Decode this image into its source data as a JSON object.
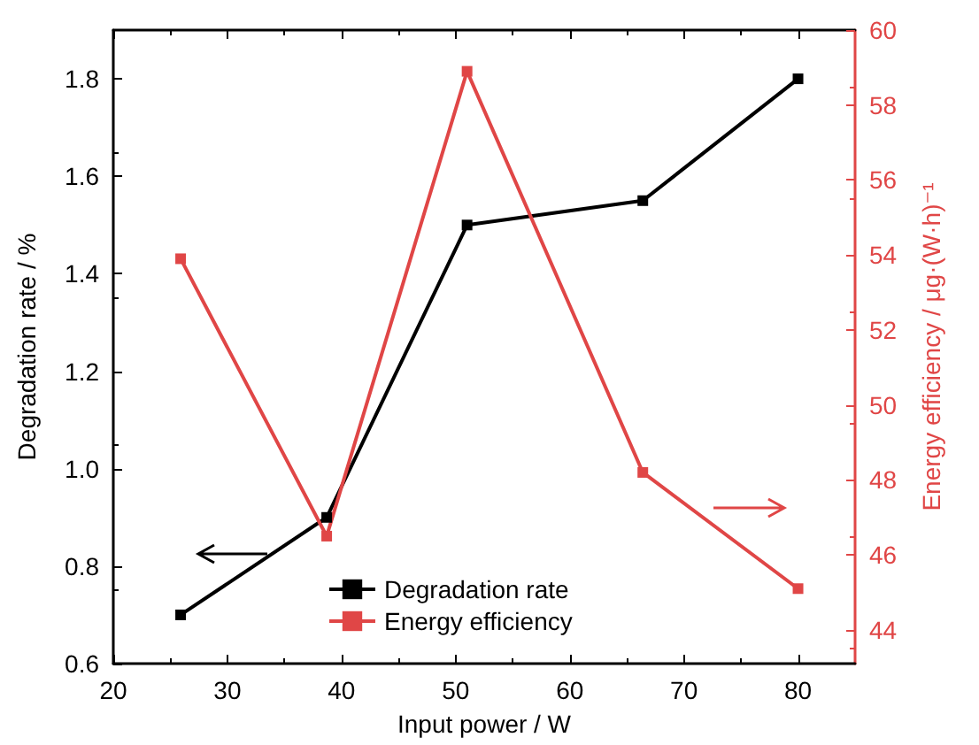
{
  "chart_data": {
    "type": "line",
    "x": [
      25.9,
      38.7,
      51,
      66.4,
      80
    ],
    "series": [
      {
        "name": "Degradation rate",
        "color": "#000000",
        "values": [
          0.7,
          0.9,
          1.5,
          1.55,
          1.8
        ]
      },
      {
        "name": "Energy efficiency",
        "color": "#e04646",
        "axis": "y2",
        "values": [
          53.9,
          46.5,
          58.9,
          48.2,
          45.1
        ]
      }
    ],
    "xlabel": "Input power / W",
    "ylabel": "Degradation rate / %",
    "y2label": "Energy efficiency / μg·(W·h)⁻¹",
    "xlim": [
      20,
      85
    ],
    "xticks": [
      20,
      30,
      40,
      50,
      60,
      70,
      80
    ],
    "ylim": [
      0.6,
      1.9
    ],
    "yticks": [
      0.6,
      0.8,
      {
        "value": 1,
        "label": "1.0"
      },
      1.2,
      1.4,
      1.6,
      1.8
    ],
    "y2lim": [
      43.1,
      60
    ],
    "y2ticks": [
      44,
      46,
      48,
      50,
      52,
      54,
      56,
      58,
      60
    ],
    "marker": "square",
    "line_style": "solid",
    "legend": "bottom",
    "grid": false
  }
}
